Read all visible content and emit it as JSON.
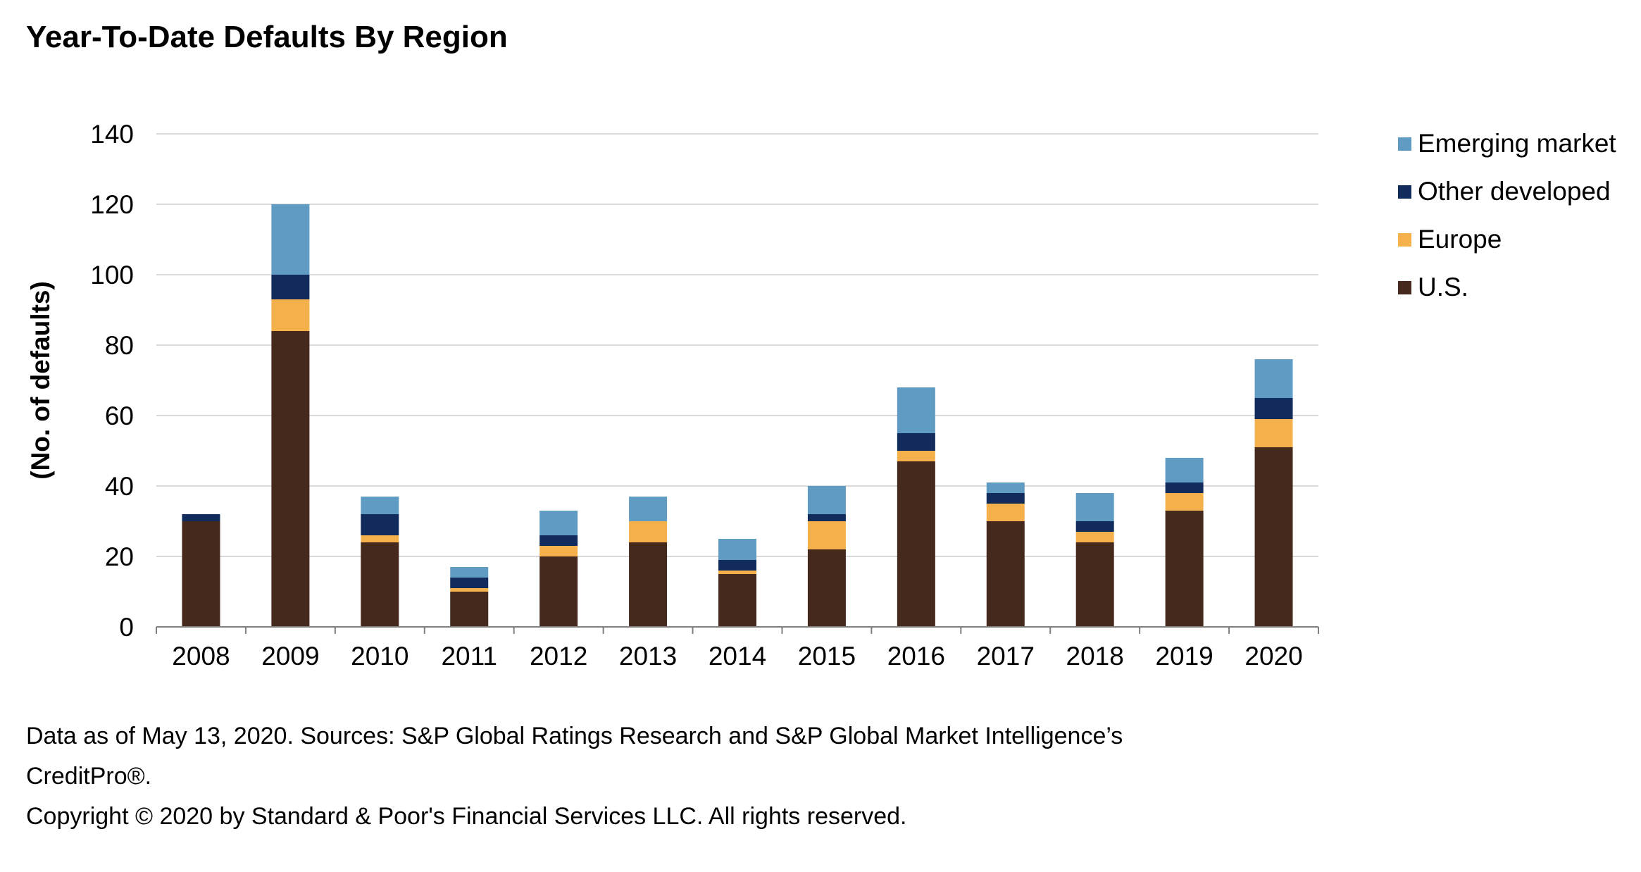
{
  "title": "Year-To-Date Defaults By Region",
  "footnotes": [
    "Data as of May 13, 2020. Sources: S&P Global Ratings Research and S&P Global Market Intelligence’s",
    "CreditPro®.",
    "Copyright © 2020 by Standard & Poor's Financial Services LLC. All rights reserved."
  ],
  "colors": {
    "us": "#45291c",
    "europe": "#f4b04a",
    "other_developed": "#112b5c",
    "emerging_market": "#609bc3",
    "grid": "#d9d9d9",
    "axis": "#808080"
  },
  "legend": [
    {
      "label": "Emerging market",
      "color": "#609bc3"
    },
    {
      "label": "Other developed",
      "color": "#112b5c"
    },
    {
      "label": "Europe",
      "color": "#f4b04a"
    },
    {
      "label": "U.S.",
      "color": "#45291c"
    }
  ],
  "chart_data": {
    "type": "bar",
    "stacked": true,
    "title": "Year-To-Date Defaults By Region",
    "xlabel": "",
    "ylabel": "(No. of defaults)",
    "ylim": [
      0,
      140
    ],
    "yticks": [
      0,
      20,
      40,
      60,
      80,
      100,
      120,
      140
    ],
    "grid": true,
    "legend_position": "right",
    "categories": [
      "2008",
      "2009",
      "2010",
      "2011",
      "2012",
      "2013",
      "2014",
      "2015",
      "2016",
      "2017",
      "2018",
      "2019",
      "2020"
    ],
    "series": [
      {
        "name": "U.S.",
        "color": "#45291c",
        "values": [
          30,
          84,
          24,
          10,
          20,
          24,
          15,
          22,
          47,
          30,
          24,
          33,
          51
        ]
      },
      {
        "name": "Europe",
        "color": "#f4b04a",
        "values": [
          0,
          9,
          2,
          1,
          3,
          6,
          1,
          8,
          3,
          5,
          3,
          5,
          8
        ]
      },
      {
        "name": "Other developed",
        "color": "#112b5c",
        "values": [
          2,
          7,
          6,
          3,
          3,
          0,
          3,
          2,
          5,
          3,
          3,
          3,
          6
        ]
      },
      {
        "name": "Emerging market",
        "color": "#609bc3",
        "values": [
          0,
          20,
          5,
          3,
          7,
          7,
          6,
          8,
          13,
          3,
          8,
          7,
          11
        ]
      }
    ]
  }
}
